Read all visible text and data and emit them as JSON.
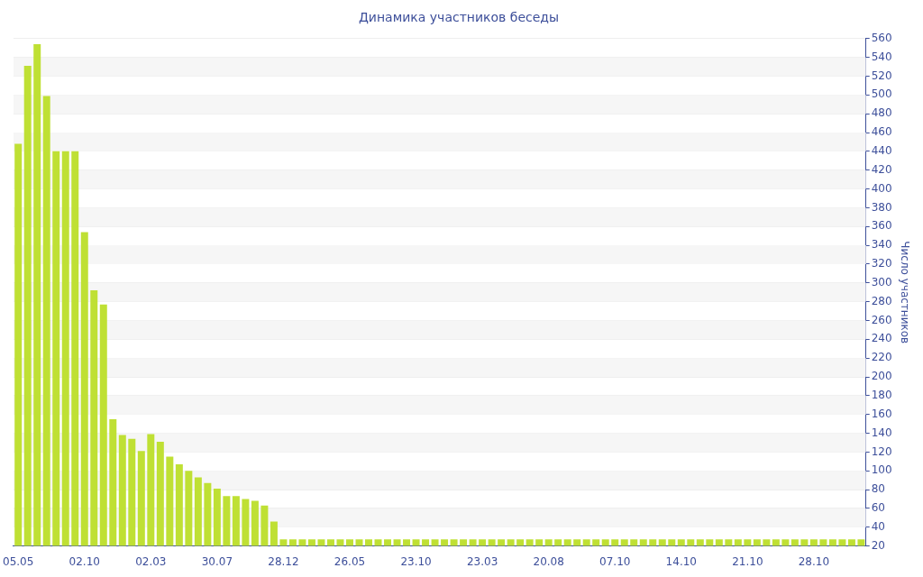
{
  "chart_data": {
    "type": "bar",
    "title": "Динамика участников беседы",
    "ylabel": "Число участников",
    "categories": [
      "05.05",
      null,
      null,
      null,
      null,
      null,
      null,
      "02.10",
      null,
      null,
      null,
      null,
      null,
      null,
      "02.03",
      null,
      null,
      null,
      null,
      null,
      null,
      "30.07",
      null,
      null,
      null,
      null,
      null,
      null,
      "28.12",
      null,
      null,
      null,
      null,
      null,
      null,
      "26.05",
      null,
      null,
      null,
      null,
      null,
      null,
      "23.10",
      null,
      null,
      null,
      null,
      null,
      null,
      "23.03",
      null,
      null,
      null,
      null,
      null,
      null,
      "20.08",
      null,
      null,
      null,
      null,
      null,
      null,
      "07.10",
      null,
      null,
      null,
      null,
      null,
      null,
      "14.10",
      null,
      null,
      null,
      null,
      null,
      null,
      "21.10",
      null,
      null,
      null,
      null,
      null,
      null,
      "28.10",
      null,
      null,
      null,
      null,
      null
    ],
    "values": [
      448,
      531,
      554,
      499,
      440,
      440,
      440,
      354,
      292,
      277,
      155,
      138,
      134,
      121,
      139,
      131,
      115,
      107,
      100,
      93,
      87,
      81,
      73,
      73,
      70,
      68,
      63,
      46,
      27,
      27,
      27,
      27,
      27,
      27,
      27,
      27,
      27,
      27,
      27,
      27,
      27,
      27,
      27,
      27,
      27,
      27,
      27,
      27,
      27,
      27,
      27,
      27,
      27,
      27,
      27,
      27,
      27,
      27,
      27,
      27,
      27,
      27,
      27,
      27,
      27,
      27,
      27,
      27,
      27,
      27,
      27,
      27,
      27,
      27,
      27,
      27,
      27,
      27,
      27,
      27,
      27,
      27,
      27,
      27,
      27,
      27,
      27,
      27,
      27,
      27
    ],
    "color": "#bfe034",
    "ylim": [
      20,
      560
    ],
    "yticks": [
      20,
      40,
      60,
      80,
      100,
      120,
      140,
      160,
      180,
      200,
      220,
      240,
      260,
      280,
      300,
      320,
      340,
      360,
      380,
      400,
      420,
      440,
      460,
      480,
      500,
      520,
      540,
      560
    ],
    "grid": "y",
    "legend": false
  }
}
